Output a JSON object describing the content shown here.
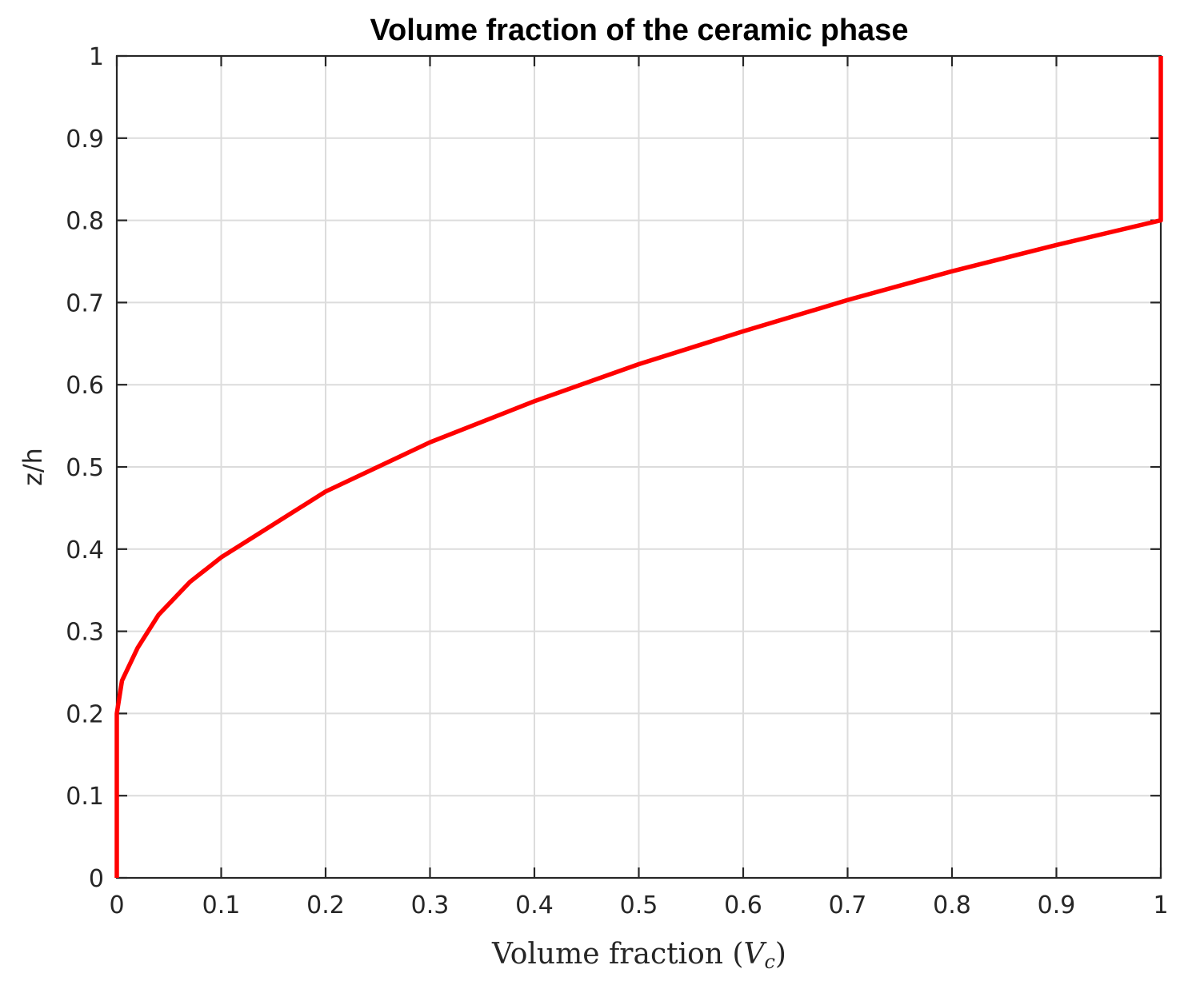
{
  "chart_data": {
    "type": "line",
    "title": "Volume fraction of the ceramic phase",
    "xlabel": "Volume fraction (",
    "xlabel_var": "V",
    "xlabel_sub": "c",
    "xlabel_close": ")",
    "ylabel": "z/h",
    "xlim": [
      0,
      1
    ],
    "ylim": [
      0,
      1
    ],
    "xticks": [
      0,
      0.1,
      0.2,
      0.3,
      0.4,
      0.5,
      0.6,
      0.7,
      0.8,
      0.9,
      1
    ],
    "yticks": [
      0,
      0.1,
      0.2,
      0.3,
      0.4,
      0.5,
      0.6,
      0.7,
      0.8,
      0.9,
      1
    ],
    "xtick_labels": [
      "0",
      "0.1",
      "0.2",
      "0.3",
      "0.4",
      "0.5",
      "0.6",
      "0.7",
      "0.8",
      "0.9",
      "1"
    ],
    "ytick_labels": [
      "0",
      "0.1",
      "0.2",
      "0.3",
      "0.4",
      "0.5",
      "0.6",
      "0.7",
      "0.8",
      "0.9",
      "1"
    ],
    "grid": true,
    "series": [
      {
        "color": "#ff0000",
        "points": [
          [
            0,
            0
          ],
          [
            0,
            0.2
          ],
          [
            0.005,
            0.24
          ],
          [
            0.02,
            0.28
          ],
          [
            0.04,
            0.32
          ],
          [
            0.07,
            0.36
          ],
          [
            0.1,
            0.39
          ],
          [
            0.2,
            0.47
          ],
          [
            0.3,
            0.53
          ],
          [
            0.4,
            0.58
          ],
          [
            0.5,
            0.625
          ],
          [
            0.6,
            0.665
          ],
          [
            0.7,
            0.703
          ],
          [
            0.8,
            0.738
          ],
          [
            0.9,
            0.77
          ],
          [
            1.0,
            0.8
          ],
          [
            1.0,
            1.0
          ]
        ]
      }
    ]
  }
}
